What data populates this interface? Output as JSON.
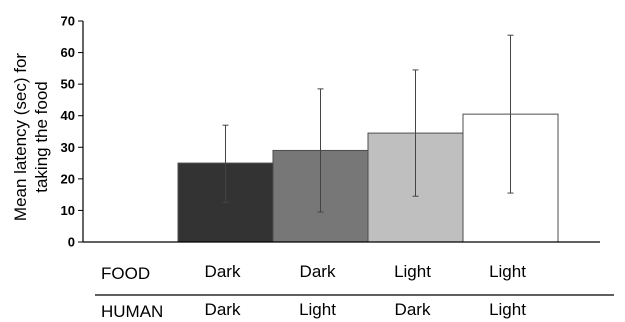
{
  "chart_data": {
    "type": "bar",
    "title": "",
    "xlabel": "",
    "ylabel_lines": [
      "Mean latency (sec) for",
      "taking the food"
    ],
    "ylim": [
      0,
      70
    ],
    "yticks": [
      "0",
      "10",
      "20",
      "30",
      "40",
      "50",
      "60",
      "70"
    ],
    "grid": false,
    "categories": [
      "Dark / Dark",
      "Dark / Light",
      "Light / Dark",
      "Light / Light"
    ],
    "values": [
      25,
      29,
      34.5,
      40.5
    ],
    "error_low": [
      12.5,
      9.5,
      14.5,
      15.5
    ],
    "error_high": [
      37,
      48.5,
      54.5,
      65.5
    ],
    "bar_colors": [
      "#333333",
      "#777777",
      "#bfbfbf",
      "#ffffff"
    ],
    "condition_rows": [
      {
        "label": "FOOD",
        "values": [
          "Dark",
          "Dark",
          "Light",
          "Light"
        ]
      },
      {
        "label": "HUMAN",
        "values": [
          "Dark",
          "Light",
          "Dark",
          "Light"
        ]
      }
    ]
  }
}
